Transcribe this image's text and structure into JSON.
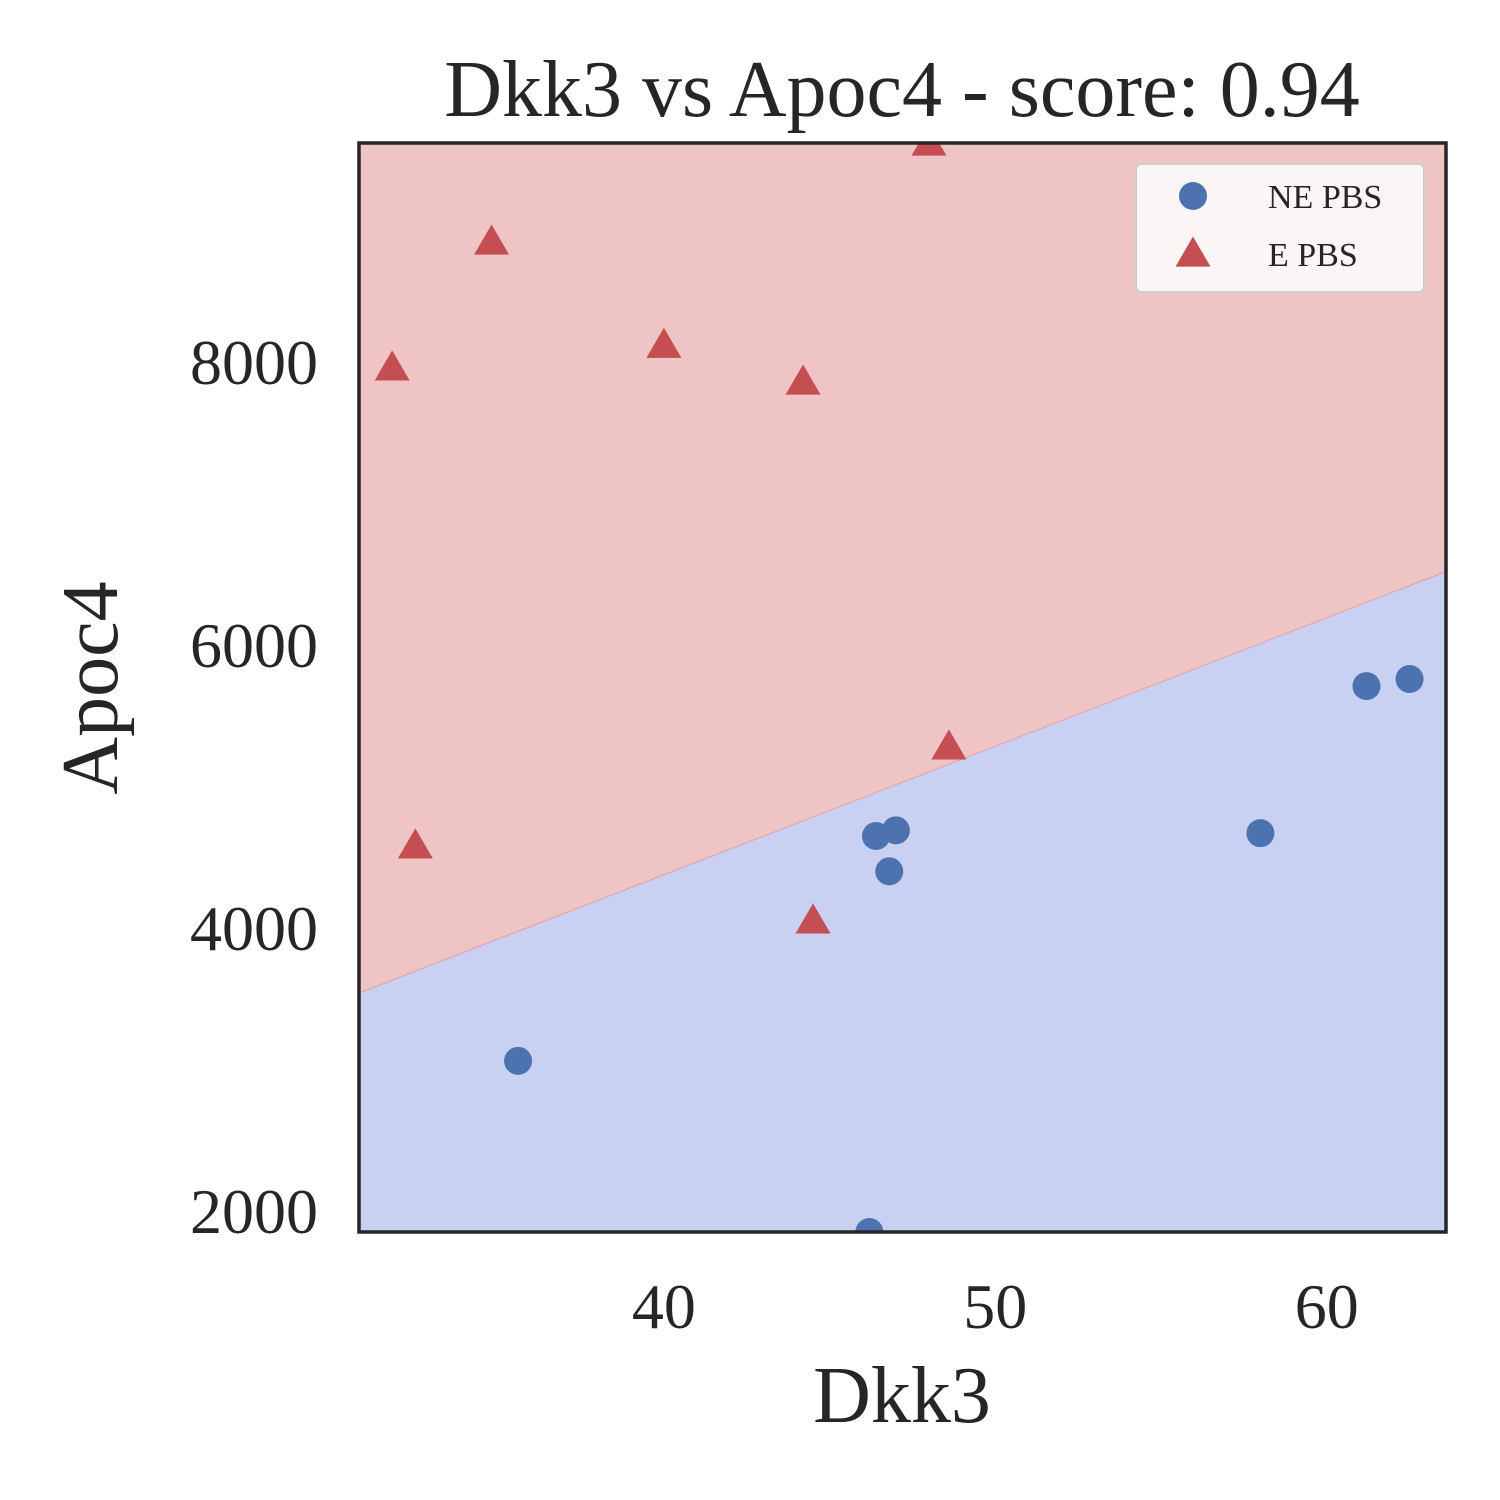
{
  "chart_data": {
    "type": "scatter",
    "title": "Dkk3 vs Apoc4 - score: 0.94",
    "xlabel": "Dkk3",
    "ylabel": "Apoc4",
    "xlim": [
      30.8,
      63.6
    ],
    "ylim": [
      1850,
      9550
    ],
    "xticks": [
      40,
      50,
      60
    ],
    "yticks": [
      2000,
      4000,
      6000,
      8000
    ],
    "grid": false,
    "legend_position": "top-right",
    "regions": [
      {
        "class": "E PBS",
        "color": "#efc4c4",
        "side": "above"
      },
      {
        "class": "NE PBS",
        "color": "#c8d1f2",
        "side": "below"
      }
    ],
    "decision_boundary": {
      "x": [
        30.8,
        63.6
      ],
      "y": [
        3540,
        6520
      ]
    },
    "series": [
      {
        "name": "NE PBS",
        "marker": "circle",
        "color": "#4c72b0",
        "points": [
          {
            "x": 35.6,
            "y": 3060
          },
          {
            "x": 46.2,
            "y": 1850
          },
          {
            "x": 46.4,
            "y": 4650
          },
          {
            "x": 47.0,
            "y": 4690
          },
          {
            "x": 46.8,
            "y": 4400
          },
          {
            "x": 58.0,
            "y": 4670
          },
          {
            "x": 61.2,
            "y": 5710
          },
          {
            "x": 62.5,
            "y": 5760
          }
        ]
      },
      {
        "name": "E PBS",
        "marker": "triangle",
        "color": "#c44e52",
        "points": [
          {
            "x": 31.8,
            "y": 7960
          },
          {
            "x": 34.8,
            "y": 8850
          },
          {
            "x": 32.5,
            "y": 4580
          },
          {
            "x": 40.0,
            "y": 8120
          },
          {
            "x": 44.2,
            "y": 7860
          },
          {
            "x": 44.5,
            "y": 4050
          },
          {
            "x": 48.0,
            "y": 9550
          },
          {
            "x": 48.6,
            "y": 5280
          }
        ]
      }
    ]
  }
}
